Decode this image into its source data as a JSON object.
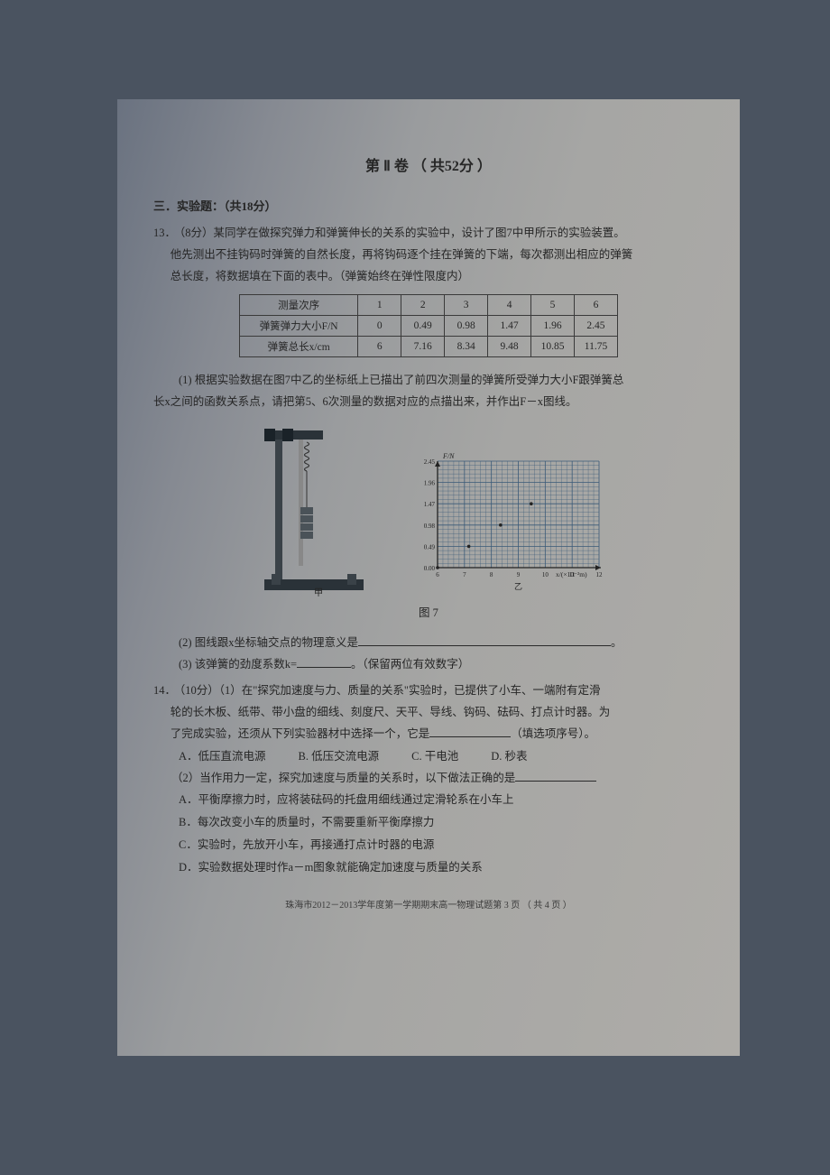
{
  "header": {
    "volume_title": "第 Ⅱ 卷 （ 共52分 ）"
  },
  "section3": {
    "heading": "三．实验题：（共18分）"
  },
  "q13": {
    "number": "13．",
    "points": "（8分）",
    "text_line1": "某同学在做探究弹力和弹簧伸长的关系的实验中，设计了图7中甲所示的实验装置。",
    "text_line2": "他先测出不挂钩码时弹簧的自然长度，再将钩码逐个挂在弹簧的下端，每次都测出相应的弹簧",
    "text_line3": "总长度，将数据填在下面的表中。（弹簧始终在弹性限度内）",
    "table": {
      "row_labels": [
        "测量次序",
        "弹簧弹力大小F/N",
        "弹簧总长x/cm"
      ],
      "columns": [
        "1",
        "2",
        "3",
        "4",
        "5",
        "6"
      ],
      "force": [
        "0",
        "0.49",
        "0.98",
        "1.47",
        "1.96",
        "2.45"
      ],
      "length": [
        "6",
        "7.16",
        "8.34",
        "9.48",
        "10.85",
        "11.75"
      ]
    },
    "sub1_a": "(1) 根据实验数据在图7中乙的坐标纸上已描出了前四次测量的弹簧所受弹力大小F跟弹簧总",
    "sub1_b": "长x之间的函数关系点，请把第5、6次测量的数据对应的点描出来，并作出F－x图线。",
    "sub2": "(2) 图线跟x坐标轴交点的物理意义是",
    "sub2_end": "。",
    "sub3_a": "(3) 该弹簧的劲度系数k=",
    "sub3_b": "。（保留两位有效数字）",
    "chart": {
      "type": "scatter",
      "ylabel": "F/N",
      "xlabel": "x/(×10⁻²m)",
      "yticks": [
        "0.00",
        "0.49",
        "0.98",
        "1.47",
        "1.96",
        "2.45"
      ],
      "xticks": [
        "6",
        "7",
        "8",
        "9",
        "10",
        "11",
        "12"
      ],
      "sublabel": "乙",
      "grid_color": "#3a5a78",
      "axis_color": "#222222",
      "bg_color": "transparent",
      "points": [
        {
          "x": 6.0,
          "y": 0.0
        },
        {
          "x": 7.16,
          "y": 0.49
        },
        {
          "x": 8.34,
          "y": 0.98
        },
        {
          "x": 9.48,
          "y": 1.47
        }
      ],
      "x_range": [
        6,
        12
      ],
      "y_range": [
        0,
        2.45
      ]
    },
    "fig_caption": "图 7"
  },
  "q14": {
    "number": "14．",
    "points": "（10分）",
    "sub1_a": "（1）在\"探究加速度与力、质量的关系\"实验时，已提供了小车、一端附有定滑",
    "sub1_b": "轮的长木板、纸带、带小盘的细线、刻度尺、天平、导线、钩码、砝码、打点计时器。为",
    "sub1_c": "了完成实验，还须从下列实验器材中选择一个，它是",
    "sub1_d": "（填选项序号）。",
    "options1": {
      "A": "A．低压直流电源",
      "B": "B. 低压交流电源",
      "C": "C. 干电池",
      "D": "D. 秒表"
    },
    "sub2_intro": "（2）当作用力一定，探究加速度与质量的关系时，以下做法正确的是",
    "options2": {
      "A": "A．平衡摩擦力时，应将装砝码的托盘用细线通过定滑轮系在小车上",
      "B": "B．每次改变小车的质量时，不需要重新平衡摩擦力",
      "C": "C．实验时，先放开小车，再接通打点计时器的电源",
      "D": "D．实验数据处理时作a－m图象就能确定加速度与质量的关系"
    }
  },
  "footer": {
    "text": "珠海市2012－2013学年度第一学期期末高一物理试题第 3 页 （ 共 4 页 ）"
  }
}
